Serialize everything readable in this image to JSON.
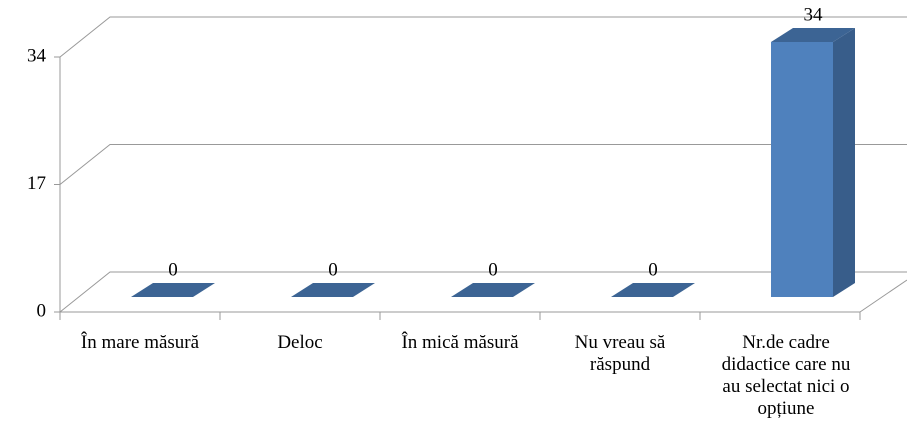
{
  "chart_data": {
    "type": "bar3d",
    "categories": [
      "În mare măsură",
      "Deloc",
      "În mică măsură",
      "Nu vreau să răspund",
      "Nr.de cadre didactice care nu au selectat nici o opțiune"
    ],
    "values": [
      0,
      0,
      0,
      0,
      34
    ],
    "color": "#4f81bd",
    "ylim": [
      0,
      34
    ],
    "yticks": [
      0,
      17,
      34
    ],
    "grid": true
  }
}
